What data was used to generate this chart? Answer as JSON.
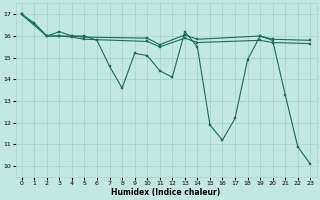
{
  "xlabel": "Humidex (Indice chaleur)",
  "bg_color": "#c2e8e2",
  "grid_color": "#aad4ce",
  "line_color": "#1a6b5a",
  "xlim": [
    -0.5,
    23.5
  ],
  "ylim": [
    9.5,
    17.5
  ],
  "xticks": [
    0,
    1,
    2,
    3,
    4,
    5,
    6,
    7,
    8,
    9,
    10,
    11,
    12,
    13,
    14,
    15,
    16,
    17,
    18,
    19,
    20,
    21,
    22,
    23
  ],
  "yticks": [
    10,
    11,
    12,
    13,
    14,
    15,
    16,
    17
  ],
  "line1_x": [
    0,
    1,
    2,
    3,
    4,
    5,
    6,
    7,
    8,
    9,
    10,
    11,
    12,
    13,
    14,
    15,
    16,
    17,
    18,
    19,
    20,
    21,
    22,
    23
  ],
  "line1_y": [
    17.0,
    16.6,
    16.0,
    16.2,
    16.0,
    16.0,
    15.8,
    14.6,
    13.6,
    15.2,
    15.1,
    14.4,
    14.1,
    16.2,
    15.5,
    11.9,
    11.2,
    12.2,
    14.9,
    16.0,
    15.8,
    13.3,
    10.9,
    10.1
  ],
  "line2_x": [
    0,
    2,
    3,
    4,
    5,
    10,
    11,
    13,
    14,
    19,
    20,
    23
  ],
  "line2_y": [
    17.0,
    16.0,
    16.0,
    16.0,
    15.95,
    15.9,
    15.6,
    16.05,
    15.85,
    16.0,
    15.85,
    15.8
  ],
  "line3_x": [
    0,
    2,
    3,
    4,
    5,
    10,
    11,
    13,
    14,
    19,
    20,
    23
  ],
  "line3_y": [
    17.0,
    16.0,
    16.0,
    15.95,
    15.85,
    15.75,
    15.5,
    15.9,
    15.7,
    15.8,
    15.7,
    15.65
  ]
}
